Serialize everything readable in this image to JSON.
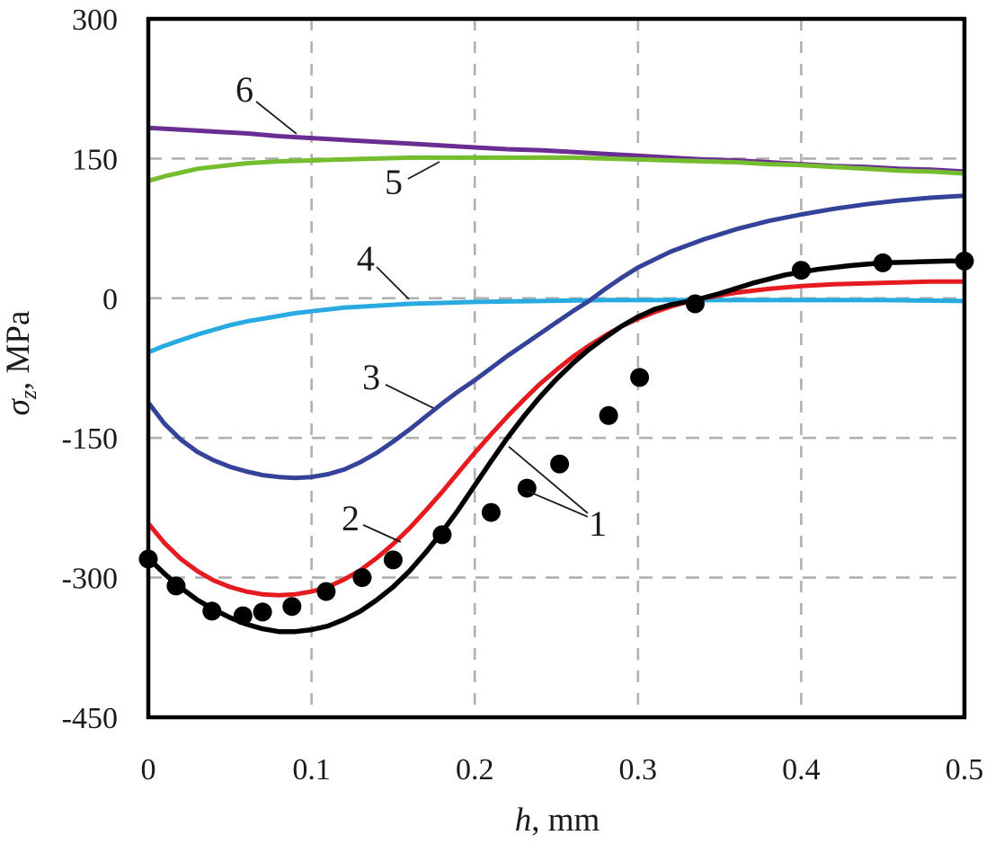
{
  "chart_data": {
    "type": "line",
    "title": "",
    "xlabel": "h, mm",
    "xlabel_parts": {
      "sym": "h",
      "rest": ", mm"
    },
    "ylabel": "σz, MPa",
    "ylabel_parts": {
      "sym": "σ",
      "sub": "z",
      "rest": ", MPa"
    },
    "xlim": [
      0,
      0.5
    ],
    "ylim": [
      -450,
      300
    ],
    "xticks": [
      0,
      0.1,
      0.2,
      0.3,
      0.4,
      0.5
    ],
    "xtick_labels": [
      "0",
      "0.1",
      "0.2",
      "0.3",
      "0.4",
      "0.5"
    ],
    "yticks": [
      300,
      150,
      0,
      -150,
      -300,
      -450
    ],
    "ytick_labels": [
      "300",
      "150",
      "0",
      "-150",
      "-300",
      "-450"
    ],
    "grid": {
      "on": true,
      "x": [
        0.1,
        0.2,
        0.3,
        0.4
      ],
      "y": [
        150,
        0,
        -150,
        -300
      ]
    },
    "legend_position": "none",
    "colors": {
      "grid": "#b0b0b0",
      "frame": "#000000",
      "annotation": "#1a1a1a",
      "curve1_black": "#000000",
      "curve2_red": "#e51b20",
      "curve3_blue": "#344399",
      "curve4_cyan": "#29abe2",
      "curve5_green": "#74bd2f",
      "curve6_purple": "#6a2d91"
    },
    "series": [
      {
        "label": "6",
        "kind": "line",
        "color": "#6a2d91",
        "width": 5,
        "points": [
          [
            0,
            183
          ],
          [
            0.02,
            181
          ],
          [
            0.04,
            179
          ],
          [
            0.06,
            177
          ],
          [
            0.08,
            174
          ],
          [
            0.1,
            172
          ],
          [
            0.12,
            170
          ],
          [
            0.14,
            168
          ],
          [
            0.16,
            166
          ],
          [
            0.18,
            164
          ],
          [
            0.2,
            162
          ],
          [
            0.22,
            160
          ],
          [
            0.24,
            159
          ],
          [
            0.26,
            157
          ],
          [
            0.28,
            155
          ],
          [
            0.3,
            153
          ],
          [
            0.32,
            151
          ],
          [
            0.34,
            149
          ],
          [
            0.36,
            148
          ],
          [
            0.38,
            146
          ],
          [
            0.4,
            144
          ],
          [
            0.42,
            142
          ],
          [
            0.44,
            141
          ],
          [
            0.46,
            139
          ],
          [
            0.48,
            138
          ],
          [
            0.5,
            136
          ]
        ]
      },
      {
        "label": "5",
        "kind": "line",
        "color": "#74bd2f",
        "width": 5,
        "points": [
          [
            0,
            126
          ],
          [
            0.01,
            131
          ],
          [
            0.02,
            135
          ],
          [
            0.03,
            139
          ],
          [
            0.04,
            141
          ],
          [
            0.05,
            143
          ],
          [
            0.06,
            145
          ],
          [
            0.08,
            147
          ],
          [
            0.1,
            148
          ],
          [
            0.12,
            149
          ],
          [
            0.14,
            150
          ],
          [
            0.16,
            151
          ],
          [
            0.18,
            151
          ],
          [
            0.2,
            151
          ],
          [
            0.22,
            151
          ],
          [
            0.24,
            151
          ],
          [
            0.26,
            151
          ],
          [
            0.28,
            150
          ],
          [
            0.3,
            149
          ],
          [
            0.32,
            148
          ],
          [
            0.34,
            147
          ],
          [
            0.36,
            146
          ],
          [
            0.38,
            144
          ],
          [
            0.4,
            143
          ],
          [
            0.42,
            141
          ],
          [
            0.44,
            139
          ],
          [
            0.46,
            137
          ],
          [
            0.48,
            136
          ],
          [
            0.5,
            134
          ]
        ]
      },
      {
        "label": "4",
        "kind": "line",
        "color": "#29abe2",
        "width": 5,
        "points": [
          [
            0,
            -58
          ],
          [
            0.01,
            -51
          ],
          [
            0.02,
            -45
          ],
          [
            0.03,
            -39
          ],
          [
            0.04,
            -34
          ],
          [
            0.05,
            -29
          ],
          [
            0.06,
            -25
          ],
          [
            0.07,
            -22
          ],
          [
            0.08,
            -19
          ],
          [
            0.09,
            -16
          ],
          [
            0.1,
            -14
          ],
          [
            0.12,
            -10
          ],
          [
            0.14,
            -8
          ],
          [
            0.16,
            -6
          ],
          [
            0.18,
            -5
          ],
          [
            0.2,
            -4
          ],
          [
            0.24,
            -3
          ],
          [
            0.28,
            -2
          ],
          [
            0.32,
            -2
          ],
          [
            0.36,
            -2
          ],
          [
            0.4,
            -2
          ],
          [
            0.45,
            -2
          ],
          [
            0.5,
            -3
          ]
        ]
      },
      {
        "label": "3",
        "kind": "line",
        "color": "#344399",
        "width": 5,
        "points": [
          [
            0,
            -112
          ],
          [
            0.01,
            -135
          ],
          [
            0.02,
            -152
          ],
          [
            0.03,
            -165
          ],
          [
            0.04,
            -174
          ],
          [
            0.05,
            -181
          ],
          [
            0.06,
            -186
          ],
          [
            0.07,
            -190
          ],
          [
            0.08,
            -192
          ],
          [
            0.09,
            -193
          ],
          [
            0.1,
            -192
          ],
          [
            0.11,
            -189
          ],
          [
            0.12,
            -184
          ],
          [
            0.13,
            -176
          ],
          [
            0.14,
            -166
          ],
          [
            0.15,
            -154
          ],
          [
            0.16,
            -141
          ],
          [
            0.17,
            -127
          ],
          [
            0.18,
            -113
          ],
          [
            0.19,
            -100
          ],
          [
            0.2,
            -88
          ],
          [
            0.21,
            -75
          ],
          [
            0.22,
            -62
          ],
          [
            0.23,
            -50
          ],
          [
            0.24,
            -38
          ],
          [
            0.25,
            -26
          ],
          [
            0.26,
            -14
          ],
          [
            0.27,
            -3
          ],
          [
            0.28,
            10
          ],
          [
            0.29,
            22
          ],
          [
            0.3,
            33
          ],
          [
            0.32,
            50
          ],
          [
            0.34,
            63
          ],
          [
            0.36,
            74
          ],
          [
            0.38,
            83
          ],
          [
            0.4,
            90
          ],
          [
            0.42,
            96
          ],
          [
            0.44,
            101
          ],
          [
            0.46,
            105
          ],
          [
            0.48,
            108
          ],
          [
            0.5,
            110
          ]
        ]
      },
      {
        "label": "2",
        "kind": "line",
        "color": "#e51b20",
        "width": 5,
        "points": [
          [
            0,
            -242
          ],
          [
            0.01,
            -263
          ],
          [
            0.02,
            -280
          ],
          [
            0.03,
            -293
          ],
          [
            0.04,
            -303
          ],
          [
            0.05,
            -310
          ],
          [
            0.06,
            -315
          ],
          [
            0.07,
            -318
          ],
          [
            0.08,
            -319
          ],
          [
            0.09,
            -318
          ],
          [
            0.1,
            -315
          ],
          [
            0.11,
            -310
          ],
          [
            0.12,
            -302
          ],
          [
            0.13,
            -292
          ],
          [
            0.14,
            -279
          ],
          [
            0.15,
            -264
          ],
          [
            0.16,
            -247
          ],
          [
            0.17,
            -228
          ],
          [
            0.18,
            -208
          ],
          [
            0.19,
            -187
          ],
          [
            0.2,
            -166
          ],
          [
            0.21,
            -146
          ],
          [
            0.22,
            -127
          ],
          [
            0.23,
            -109
          ],
          [
            0.24,
            -92
          ],
          [
            0.25,
            -77
          ],
          [
            0.26,
            -63
          ],
          [
            0.27,
            -51
          ],
          [
            0.28,
            -40
          ],
          [
            0.29,
            -30
          ],
          [
            0.3,
            -22
          ],
          [
            0.31,
            -15
          ],
          [
            0.32,
            -9
          ],
          [
            0.33,
            -4
          ],
          [
            0.34,
            0
          ],
          [
            0.35,
            3
          ],
          [
            0.36,
            6
          ],
          [
            0.38,
            10
          ],
          [
            0.4,
            13
          ],
          [
            0.42,
            15
          ],
          [
            0.44,
            16
          ],
          [
            0.46,
            17
          ],
          [
            0.48,
            18
          ],
          [
            0.5,
            18
          ]
        ]
      },
      {
        "label": "1",
        "kind": "line",
        "color": "#000000",
        "width": 5.5,
        "points": [
          [
            0,
            -279
          ],
          [
            0.01,
            -296
          ],
          [
            0.02,
            -311
          ],
          [
            0.03,
            -324
          ],
          [
            0.04,
            -334
          ],
          [
            0.05,
            -343
          ],
          [
            0.06,
            -350
          ],
          [
            0.07,
            -355
          ],
          [
            0.08,
            -358
          ],
          [
            0.09,
            -358
          ],
          [
            0.1,
            -356
          ],
          [
            0.11,
            -352
          ],
          [
            0.12,
            -345
          ],
          [
            0.13,
            -336
          ],
          [
            0.14,
            -324
          ],
          [
            0.15,
            -310
          ],
          [
            0.16,
            -293
          ],
          [
            0.17,
            -273
          ],
          [
            0.18,
            -251
          ],
          [
            0.19,
            -227
          ],
          [
            0.2,
            -201
          ],
          [
            0.21,
            -175
          ],
          [
            0.22,
            -150
          ],
          [
            0.23,
            -127
          ],
          [
            0.24,
            -106
          ],
          [
            0.25,
            -87
          ],
          [
            0.26,
            -70
          ],
          [
            0.27,
            -55
          ],
          [
            0.28,
            -42
          ],
          [
            0.29,
            -30
          ],
          [
            0.3,
            -20
          ],
          [
            0.31,
            -12
          ],
          [
            0.32,
            -7
          ],
          [
            0.335,
            -2
          ],
          [
            0.35,
            5
          ],
          [
            0.37,
            16
          ],
          [
            0.39,
            25
          ],
          [
            0.41,
            31
          ],
          [
            0.43,
            35
          ],
          [
            0.45,
            38
          ],
          [
            0.47,
            39
          ],
          [
            0.49,
            40
          ],
          [
            0.5,
            40
          ]
        ]
      },
      {
        "label": "1",
        "kind": "scatter",
        "color": "#000000",
        "radius": 10.5,
        "points": [
          [
            0,
            -280
          ],
          [
            0.017,
            -309
          ],
          [
            0.039,
            -336
          ],
          [
            0.058,
            -341
          ],
          [
            0.07,
            -337
          ],
          [
            0.088,
            -331
          ],
          [
            0.109,
            -315
          ],
          [
            0.131,
            -300
          ],
          [
            0.15,
            -281
          ],
          [
            0.18,
            -254
          ],
          [
            0.21,
            -230
          ],
          [
            0.232,
            -204
          ],
          [
            0.252,
            -178
          ],
          [
            0.282,
            -126
          ],
          [
            0.301,
            -85
          ],
          [
            0.335,
            -6
          ],
          [
            0.4,
            30
          ],
          [
            0.45,
            38
          ],
          [
            0.5,
            40
          ]
        ]
      }
    ],
    "annotations": [
      {
        "text": "6",
        "h": 0.0589,
        "v": 223.7,
        "leaders": [
          [
            0.0661,
            211.2,
            0.0908,
            176.5
          ]
        ]
      },
      {
        "text": "5",
        "h": 0.1503,
        "v": 124.3,
        "leaders": [
          [
            0.1591,
            128.2,
            0.1784,
            146.5
          ]
        ]
      },
      {
        "text": "4",
        "h": 0.1332,
        "v": 42.3,
        "leaders": [
          [
            0.1399,
            33.6,
            0.1597,
            -1.1
          ]
        ]
      },
      {
        "text": "3",
        "h": 0.1366,
        "v": -85.1,
        "leaders": [
          [
            0.1454,
            -92.8,
            0.1746,
            -117.9
          ]
        ]
      },
      {
        "text": "2",
        "h": 0.1239,
        "v": -236.7,
        "leaders": [
          [
            0.1316,
            -243.4,
            0.1547,
            -261.8
          ]
        ]
      },
      {
        "text": "1",
        "h": 0.2753,
        "v": -242.4,
        "leaders": [
          [
            0.2692,
            -230.9,
            0.2208,
            -159.4
          ],
          [
            0.2692,
            -234.7,
            0.2318,
            -206.7
          ]
        ]
      }
    ]
  }
}
